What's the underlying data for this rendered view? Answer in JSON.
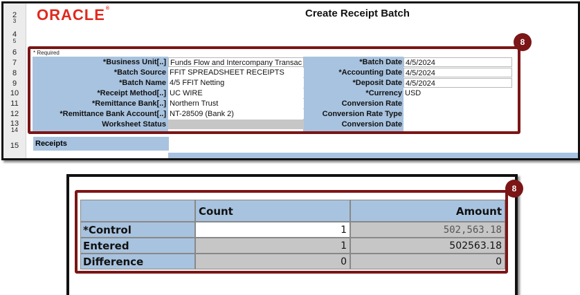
{
  "oracle_logo": "ORACLE",
  "sheet_title": "Create Receipt Batch",
  "row_numbers": [
    "2",
    "3",
    "4",
    "5",
    "6",
    "7",
    "8",
    "9",
    "10",
    "11",
    "12",
    "13",
    "14",
    "15"
  ],
  "required_note": "* Required",
  "left_fields": [
    {
      "label": "*Business Unit[..]",
      "value": "Funds Flow and Intercompany Transac"
    },
    {
      "label": "*Batch Source",
      "value": "FFIT SPREADSHEET RECEIPTS"
    },
    {
      "label": "*Batch Name",
      "value": "4/5 FFIT Netting"
    },
    {
      "label": "*Receipt Method[..]",
      "value": "UC WIRE"
    },
    {
      "label": "*Remittance Bank[..]",
      "value": "Northern Trust"
    },
    {
      "label": "*Remittance Bank Account[..]",
      "value": "NT-28509 (Bank 2)"
    },
    {
      "label": "Worksheet Status",
      "value": ""
    }
  ],
  "right_fields": [
    {
      "label": "*Batch Date",
      "value": "4/5/2024"
    },
    {
      "label": "*Accounting Date",
      "value": "4/5/2024"
    },
    {
      "label": "*Deposit Date",
      "value": "4/5/2024"
    },
    {
      "label": "*Currency",
      "value": "USD"
    },
    {
      "label": "Conversion Rate",
      "value": ""
    },
    {
      "label": "Conversion Rate Type",
      "value": ""
    },
    {
      "label": "Conversion Date",
      "value": ""
    }
  ],
  "receipts_section": "Receipts",
  "callout_top": "8",
  "callout_bottom": "8",
  "totals": {
    "headers": {
      "count": "Count",
      "amount": "Amount"
    },
    "rows": [
      {
        "label": "*Control",
        "count": "1",
        "amount": "502,563.18"
      },
      {
        "label": "Entered",
        "count": "1",
        "amount": "502563.18"
      },
      {
        "label": "Difference",
        "count": "0",
        "amount": "0"
      }
    ]
  },
  "colors": {
    "header_blue": "#a8c3df",
    "callout_red": "#7b1516",
    "oracle_red": "#e0291d",
    "readonly_gray": "#c6c6c6"
  }
}
